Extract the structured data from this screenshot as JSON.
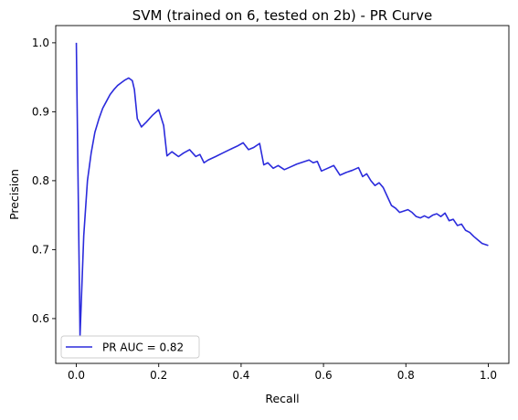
{
  "chart_data": {
    "type": "line",
    "title": "SVM (trained on 6, tested on 2b) -  PR Curve",
    "xlabel": "Recall",
    "ylabel": "Precision",
    "xlim": [
      -0.05,
      1.05
    ],
    "ylim": [
      0.535,
      1.025
    ],
    "xticks": [
      0.0,
      0.2,
      0.4,
      0.6,
      0.8,
      1.0
    ],
    "xtick_labels": [
      "0.0",
      "0.2",
      "0.4",
      "0.6",
      "0.8",
      "1.0"
    ],
    "yticks": [
      0.6,
      0.7,
      0.8,
      0.9,
      1.0
    ],
    "ytick_labels": [
      "0.6",
      "0.7",
      "0.8",
      "0.9",
      "1.0"
    ],
    "grid": false,
    "legend_position": "lower-left",
    "series": [
      {
        "name": "PR AUC = 0.82",
        "color": "#2b2bdc",
        "x": [
          0.0,
          0.009,
          0.018,
          0.027,
          0.036,
          0.045,
          0.055,
          0.064,
          0.073,
          0.082,
          0.091,
          0.1,
          0.109,
          0.118,
          0.127,
          0.136,
          0.141,
          0.148,
          0.158,
          0.17,
          0.185,
          0.2,
          0.212,
          0.22,
          0.232,
          0.248,
          0.26,
          0.275,
          0.29,
          0.3,
          0.31,
          0.32,
          0.338,
          0.355,
          0.372,
          0.39,
          0.405,
          0.418,
          0.43,
          0.445,
          0.455,
          0.465,
          0.478,
          0.49,
          0.505,
          0.52,
          0.535,
          0.55,
          0.565,
          0.575,
          0.585,
          0.595,
          0.61,
          0.625,
          0.64,
          0.655,
          0.67,
          0.685,
          0.695,
          0.705,
          0.715,
          0.725,
          0.735,
          0.745,
          0.755,
          0.765,
          0.775,
          0.785,
          0.795,
          0.805,
          0.815,
          0.825,
          0.835,
          0.845,
          0.855,
          0.865,
          0.875,
          0.885,
          0.895,
          0.905,
          0.915,
          0.925,
          0.935,
          0.945,
          0.955,
          0.965,
          0.975,
          0.985,
          1.0
        ],
        "y": [
          1.0,
          0.575,
          0.72,
          0.8,
          0.84,
          0.87,
          0.89,
          0.905,
          0.915,
          0.925,
          0.932,
          0.938,
          0.942,
          0.946,
          0.949,
          0.945,
          0.932,
          0.89,
          0.878,
          0.885,
          0.895,
          0.903,
          0.88,
          0.836,
          0.842,
          0.835,
          0.84,
          0.845,
          0.835,
          0.838,
          0.826,
          0.83,
          0.835,
          0.84,
          0.845,
          0.85,
          0.855,
          0.845,
          0.848,
          0.854,
          0.823,
          0.826,
          0.818,
          0.822,
          0.816,
          0.82,
          0.824,
          0.827,
          0.83,
          0.826,
          0.828,
          0.814,
          0.818,
          0.822,
          0.808,
          0.812,
          0.815,
          0.819,
          0.806,
          0.81,
          0.8,
          0.793,
          0.797,
          0.79,
          0.777,
          0.764,
          0.76,
          0.754,
          0.756,
          0.758,
          0.754,
          0.748,
          0.746,
          0.749,
          0.746,
          0.75,
          0.752,
          0.748,
          0.753,
          0.742,
          0.744,
          0.735,
          0.737,
          0.728,
          0.725,
          0.719,
          0.714,
          0.709,
          0.706
        ]
      }
    ]
  }
}
